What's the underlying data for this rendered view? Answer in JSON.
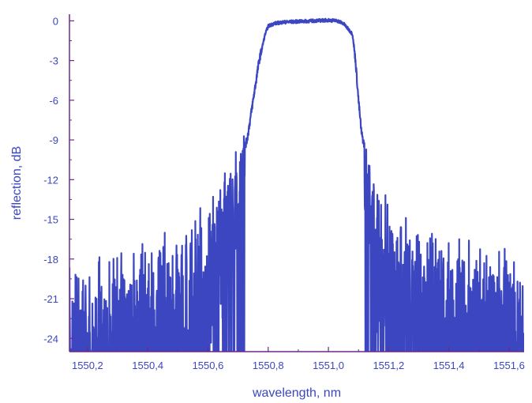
{
  "chart_data": {
    "type": "line",
    "title": "",
    "xlabel": "wavelength, nm",
    "ylabel": "reflection, dB",
    "xlim": [
      1550.14,
      1551.65
    ],
    "ylim": [
      -25,
      0.5
    ],
    "xticks": [
      1550.2,
      1550.4,
      1550.6,
      1550.8,
      1551.0,
      1551.2,
      1551.4,
      1551.6
    ],
    "xtick_labels": [
      "1550,2",
      "1550,4",
      "1550,6",
      "1550,8",
      "1551,0",
      "1551,2",
      "1551,4",
      "1551,6"
    ],
    "yticks": [
      0,
      -3,
      -6,
      -9,
      -12,
      -15,
      -18,
      -21,
      -24
    ],
    "ytick_labels": [
      "0",
      "-3",
      "-6",
      "-9",
      "-12",
      "-15",
      "-18",
      "-21",
      "-24"
    ],
    "grid": false,
    "legend": "none",
    "line_color": "#3b46c0",
    "text_color": "#3b46c0",
    "axis_color": "#6a2a8a",
    "series": [
      {
        "x": [
          1550.14,
          1550.2,
          1550.3,
          1550.4,
          1550.5,
          1550.55,
          1550.6,
          1550.65,
          1550.7,
          1550.73,
          1550.75,
          1550.77,
          1550.79,
          1550.8,
          1550.82,
          1550.85,
          1550.9,
          1550.95,
          1551.0,
          1551.03,
          1551.05,
          1551.08,
          1551.09,
          1551.1,
          1551.11,
          1551.13,
          1551.15,
          1551.2,
          1551.25,
          1551.3,
          1551.4,
          1551.5,
          1551.6,
          1551.64
        ],
        "y": [
          -20.5,
          -20.0,
          -19.5,
          -18.5,
          -17.5,
          -16.5,
          -15.0,
          -13.0,
          -11.0,
          -9.0,
          -6.0,
          -3.0,
          -1.0,
          -0.4,
          -0.2,
          -0.1,
          -0.05,
          0.0,
          0.05,
          0.0,
          -0.2,
          -1.0,
          -3.0,
          -6.0,
          -8.5,
          -10.5,
          -12.5,
          -15.0,
          -16.5,
          -17.5,
          -18.0,
          -18.5,
          -19.0,
          -19.5
        ]
      }
    ]
  }
}
